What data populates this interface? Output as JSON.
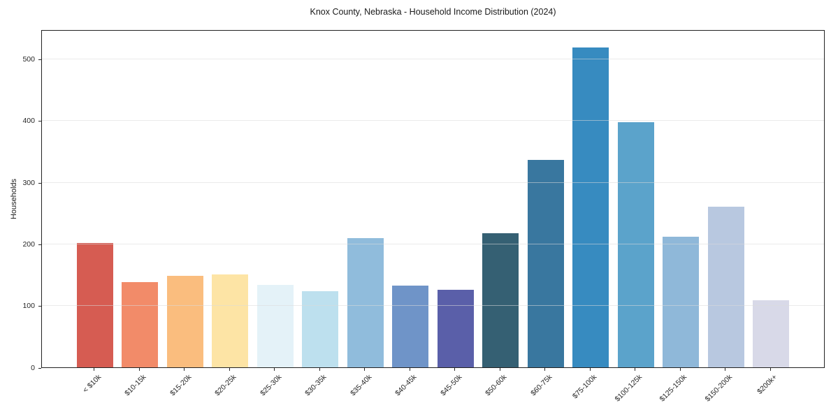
{
  "chart_data": {
    "type": "bar",
    "title": "Knox County, Nebraska - Household Income Distribution (2024)",
    "xlabel": "",
    "ylabel": "Households",
    "categories": [
      "< $10k",
      "$10-15k",
      "$15-20k",
      "$20-25k",
      "$25-30k",
      "$30-35k",
      "$35-40k",
      "$40-45k",
      "$45-50k",
      "$50-60k",
      "$60-75k",
      "$75-100k",
      "$100-125k",
      "$125-150k",
      "$150-200k",
      "$200k+"
    ],
    "values": [
      202,
      138,
      148,
      151,
      134,
      124,
      210,
      133,
      126,
      217,
      336,
      519,
      398,
      212,
      260,
      109
    ],
    "bar_colors": [
      "#d65c52",
      "#f28b69",
      "#fabd7e",
      "#fde4a5",
      "#e4f2f8",
      "#bde0ee",
      "#90bcdc",
      "#6f94c8",
      "#5a5fa9",
      "#356073",
      "#39779f",
      "#378bc0",
      "#5ba3cb",
      "#8fb8d9",
      "#b8c8e0",
      "#d8d9e8"
    ],
    "yticks": [
      0,
      100,
      200,
      300,
      400,
      500
    ],
    "ylim": [
      0,
      548
    ],
    "grid": "horizontal-over-bars",
    "legend": "none",
    "background": "#ffffff",
    "axis_color": "#262626"
  }
}
